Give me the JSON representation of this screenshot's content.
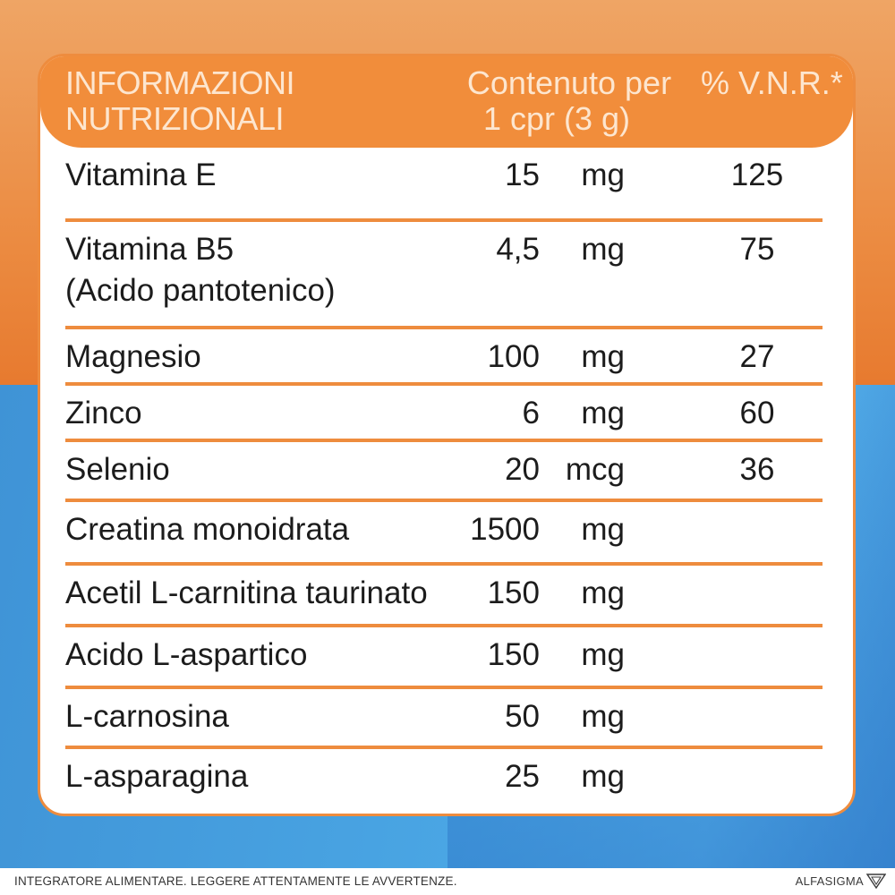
{
  "header": {
    "title_line1": "INFORMAZIONI",
    "title_line2": "NUTRIZIONALI",
    "amount_line1": "Contenuto per",
    "amount_line2": "1 cpr (3 g)",
    "vnr": "% V.N.R.*"
  },
  "rows": [
    {
      "name": "Vitamina E",
      "sub": "",
      "qty": "15",
      "unit": "mg",
      "vnr": "125"
    },
    {
      "name": "Vitamina B5",
      "sub": "(Acido pantotenico)",
      "qty": "4,5",
      "unit": "mg",
      "vnr": "75"
    },
    {
      "name": "Magnesio",
      "sub": "",
      "qty": "100",
      "unit": "mg",
      "vnr": "27"
    },
    {
      "name": "Zinco",
      "sub": "",
      "qty": "6",
      "unit": "mg",
      "vnr": "60"
    },
    {
      "name": "Selenio",
      "sub": "",
      "qty": "20",
      "unit": "mcg",
      "vnr": "36"
    },
    {
      "name": "Creatina monoidrata",
      "sub": "",
      "qty": "1500",
      "unit": "mg",
      "vnr": ""
    },
    {
      "name": "Acetil L-carnitina taurinato",
      "sub": "",
      "qty": "150",
      "unit": "mg",
      "vnr": ""
    },
    {
      "name": "Acido L-aspartico",
      "sub": "",
      "qty": "150",
      "unit": "mg",
      "vnr": ""
    },
    {
      "name": "L-carnosina",
      "sub": "",
      "qty": "50",
      "unit": "mg",
      "vnr": ""
    },
    {
      "name": "L-asparagina",
      "sub": "",
      "qty": "25",
      "unit": "mg",
      "vnr": ""
    }
  ],
  "footer": {
    "disclaimer": "INTEGRATORE ALIMENTARE. LEGGERE ATTENTAMENTE LE AVVERTENZE.",
    "brand": "ALFASIGMA",
    "brand_logo_icon": "alfasigma-triangle-logo"
  },
  "colors": {
    "orange": "#f18d3b",
    "header_text": "#fde6cf",
    "blue": "#4aa6e4"
  }
}
